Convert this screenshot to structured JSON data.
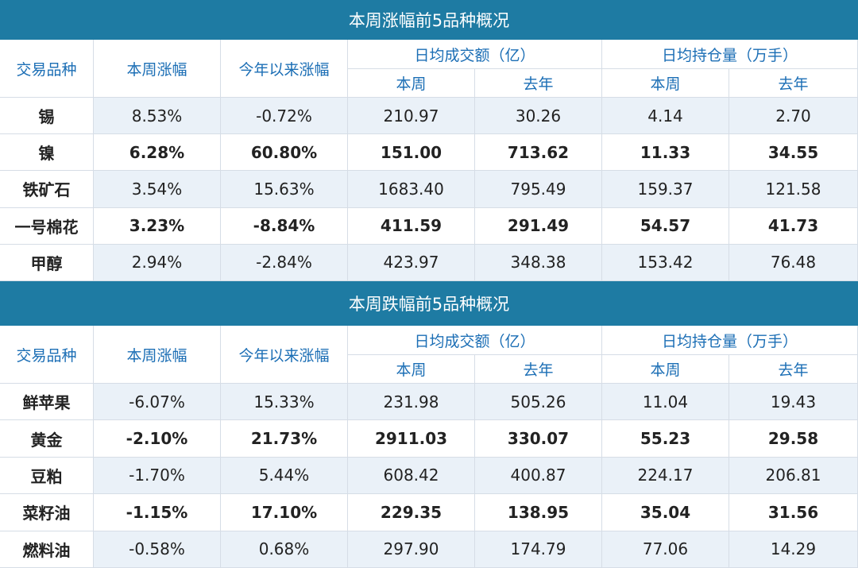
{
  "sections": [
    {
      "title": "本周涨幅前5品种概况",
      "headers": [
        "交易品种",
        "本周涨幅",
        "今年以来涨幅",
        "日均成交额（亿）",
        "日均持仓量（万手）"
      ],
      "subheaders": [
        "本周",
        "去年",
        "本周",
        "去年"
      ],
      "rows": [
        [
          "锡",
          "8.53%",
          "-0.72%",
          "210.97",
          "30.26",
          "4.14",
          "2.70"
        ],
        [
          "镍",
          "6.28%",
          "60.80%",
          "151.00",
          "713.62",
          "11.33",
          "34.55"
        ],
        [
          "铁矿石",
          "3.54%",
          "15.63%",
          "1683.40",
          "795.49",
          "159.37",
          "121.58"
        ],
        [
          "一号棉花",
          "3.23%",
          "-8.84%",
          "411.59",
          "291.49",
          "54.57",
          "41.73"
        ],
        [
          "甲醇",
          "2.94%",
          "-2.84%",
          "423.97",
          "348.38",
          "153.42",
          "76.48"
        ]
      ]
    },
    {
      "title": "本周跌幅前5品种概况",
      "headers": [
        "交易品种",
        "本周涨幅",
        "今年以来涨幅",
        "日均成交额（亿）",
        "日均持仓量（万手）"
      ],
      "subheaders": [
        "本周",
        "去年",
        "本周",
        "去年"
      ],
      "rows": [
        [
          "鲜苹果",
          "-6.07%",
          "15.33%",
          "231.98",
          "505.26",
          "11.04",
          "19.43"
        ],
        [
          "黄金",
          "-2.10%",
          "21.73%",
          "2911.03",
          "330.07",
          "55.23",
          "29.58"
        ],
        [
          "豆粕",
          "-1.70%",
          "5.44%",
          "608.42",
          "400.87",
          "224.17",
          "206.81"
        ],
        [
          "菜籽油",
          "-1.15%",
          "17.10%",
          "229.35",
          "138.95",
          "35.04",
          "31.56"
        ],
        [
          "燃料油",
          "-0.58%",
          "0.68%",
          "297.90",
          "174.79",
          "77.06",
          "14.29"
        ]
      ]
    }
  ]
}
